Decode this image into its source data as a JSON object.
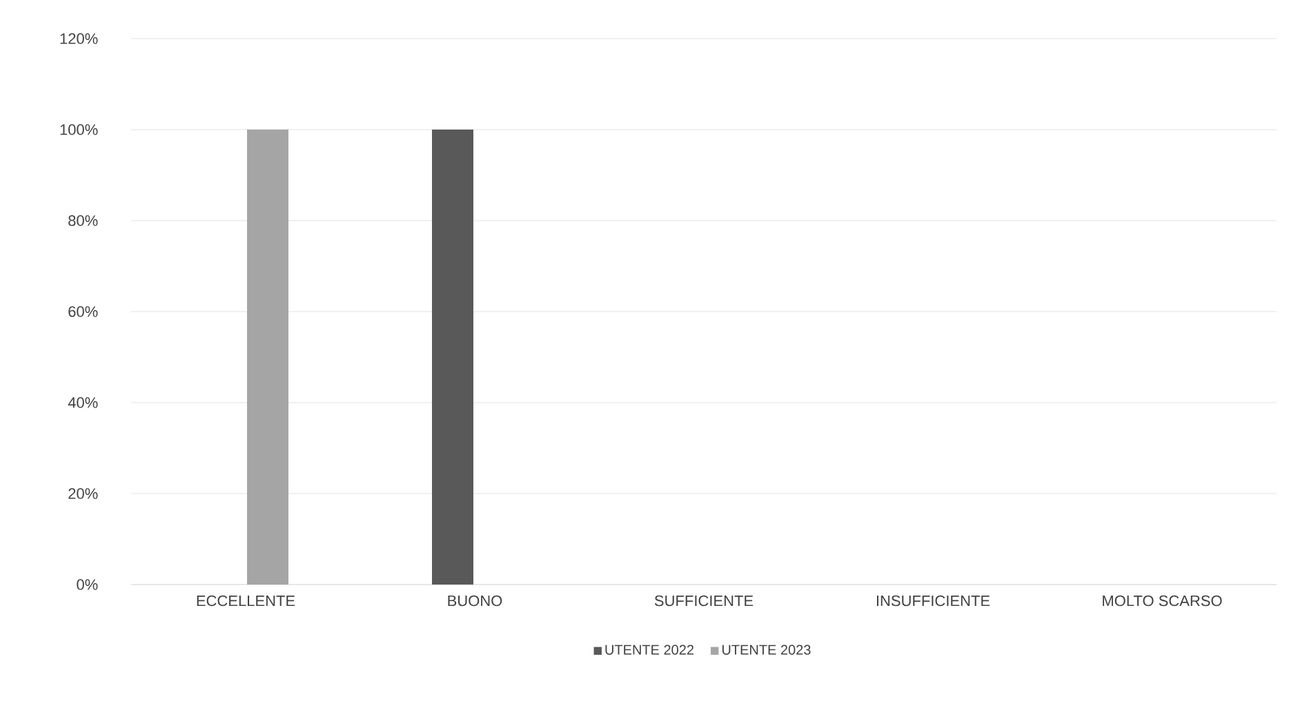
{
  "chart_data": {
    "type": "bar",
    "categories": [
      "ECCELLENTE",
      "BUONO",
      "SUFFICIENTE",
      "INSUFFICIENTE",
      "MOLTO SCARSO"
    ],
    "series": [
      {
        "name": "UTENTE 2022",
        "color": "#595959",
        "values": [
          0,
          100,
          0,
          0,
          0
        ]
      },
      {
        "name": "UTENTE 2023",
        "color": "#a5a5a5",
        "values": [
          100,
          0,
          0,
          0,
          0
        ]
      }
    ],
    "ylim": [
      0,
      120
    ],
    "yticks": [
      {
        "value": 0,
        "label": "0%"
      },
      {
        "value": 20,
        "label": "20%"
      },
      {
        "value": 40,
        "label": "40%"
      },
      {
        "value": 60,
        "label": "60%"
      },
      {
        "value": 80,
        "label": "80%"
      },
      {
        "value": 100,
        "label": "100%"
      },
      {
        "value": 120,
        "label": "120%"
      }
    ],
    "grid": "y",
    "legend": "bottom"
  }
}
